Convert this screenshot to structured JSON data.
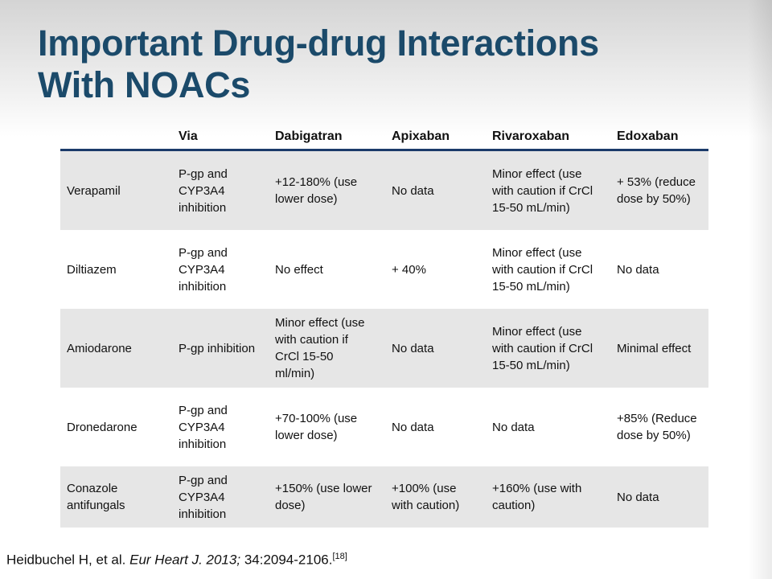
{
  "header": {
    "title_lines": [
      "Important Drug-drug Interactions",
      "With NOACs"
    ]
  },
  "table": {
    "columns": [
      "Via",
      "Dabigatran",
      "Apixaban",
      "Rivaroxaban",
      "Edoxaban"
    ],
    "rows": [
      [
        "Verapamil",
        "P-gp and CYP3A4 inhibition",
        "+12-180% (use lower dose)",
        "No data",
        "Minor effect (use with caution if CrCl 15-50 mL/min)",
        "+ 53% (reduce dose by 50%)"
      ],
      [
        "Diltiazem",
        "P-gp and CYP3A4 inhibition",
        "No effect",
        "+ 40%",
        "Minor effect (use with caution if CrCl 15-50 mL/min)",
        "No data"
      ],
      [
        "Amiodarone",
        "P-gp inhibition",
        "Minor effect (use with caution if CrCl 15-50 ml/min)",
        "No data",
        "Minor effect (use with caution if CrCl 15-50 mL/min)",
        "Minimal effect"
      ],
      [
        "Dronedarone",
        "P-gp and CYP3A4 inhibition",
        "+70-100% (use lower dose)",
        "No data",
        "No data",
        "+85% (Reduce dose by 50%)"
      ],
      [
        "Conazole antifungals",
        "P-gp and CYP3A4 inhibition",
        "+150% (use lower dose)",
        "+100% (use with caution)",
        "+160% (use with caution)",
        "No data"
      ]
    ]
  },
  "citation": {
    "authors": "Heidbuchel H, et al.",
    "journal": "Eur Heart J. 2013;",
    "pages": "34:2094-2106.",
    "ref": "[18]"
  }
}
